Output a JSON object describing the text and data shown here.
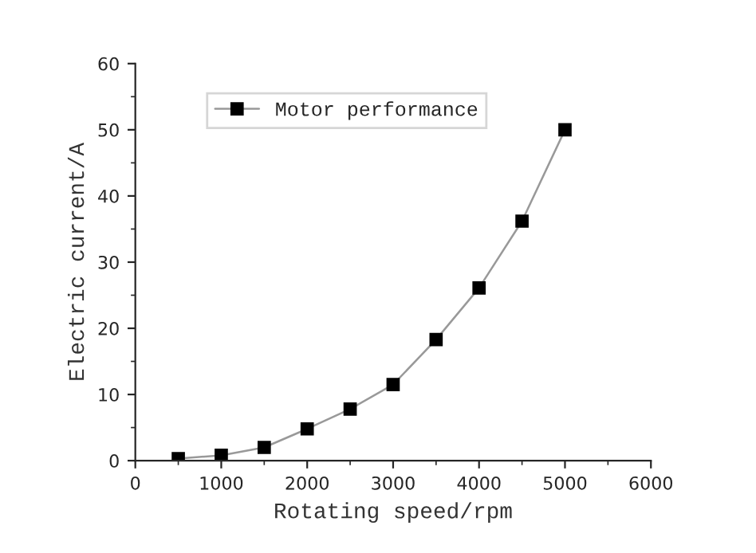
{
  "chart_data": {
    "type": "line",
    "xlabel": "Rotating speed/rpm",
    "ylabel": "Electric current/A",
    "x": [
      500,
      1000,
      1500,
      2000,
      2500,
      3000,
      3500,
      4000,
      4500,
      5000
    ],
    "series": [
      {
        "name": "Motor performance",
        "color": "#000000",
        "values": [
          0.3,
          0.8,
          2,
          4.8,
          7.8,
          11.5,
          18.3,
          26.1,
          36.2,
          50
        ]
      }
    ],
    "xlim": [
      0,
      6000
    ],
    "xticks": [
      0,
      1000,
      2000,
      3000,
      4000,
      5000,
      6000
    ],
    "ylim": [
      0,
      60
    ],
    "yticks": [
      0,
      10,
      20,
      30,
      40,
      50,
      60
    ],
    "marker": "square",
    "line_style": "solid",
    "grid": false,
    "legend": "top left"
  }
}
